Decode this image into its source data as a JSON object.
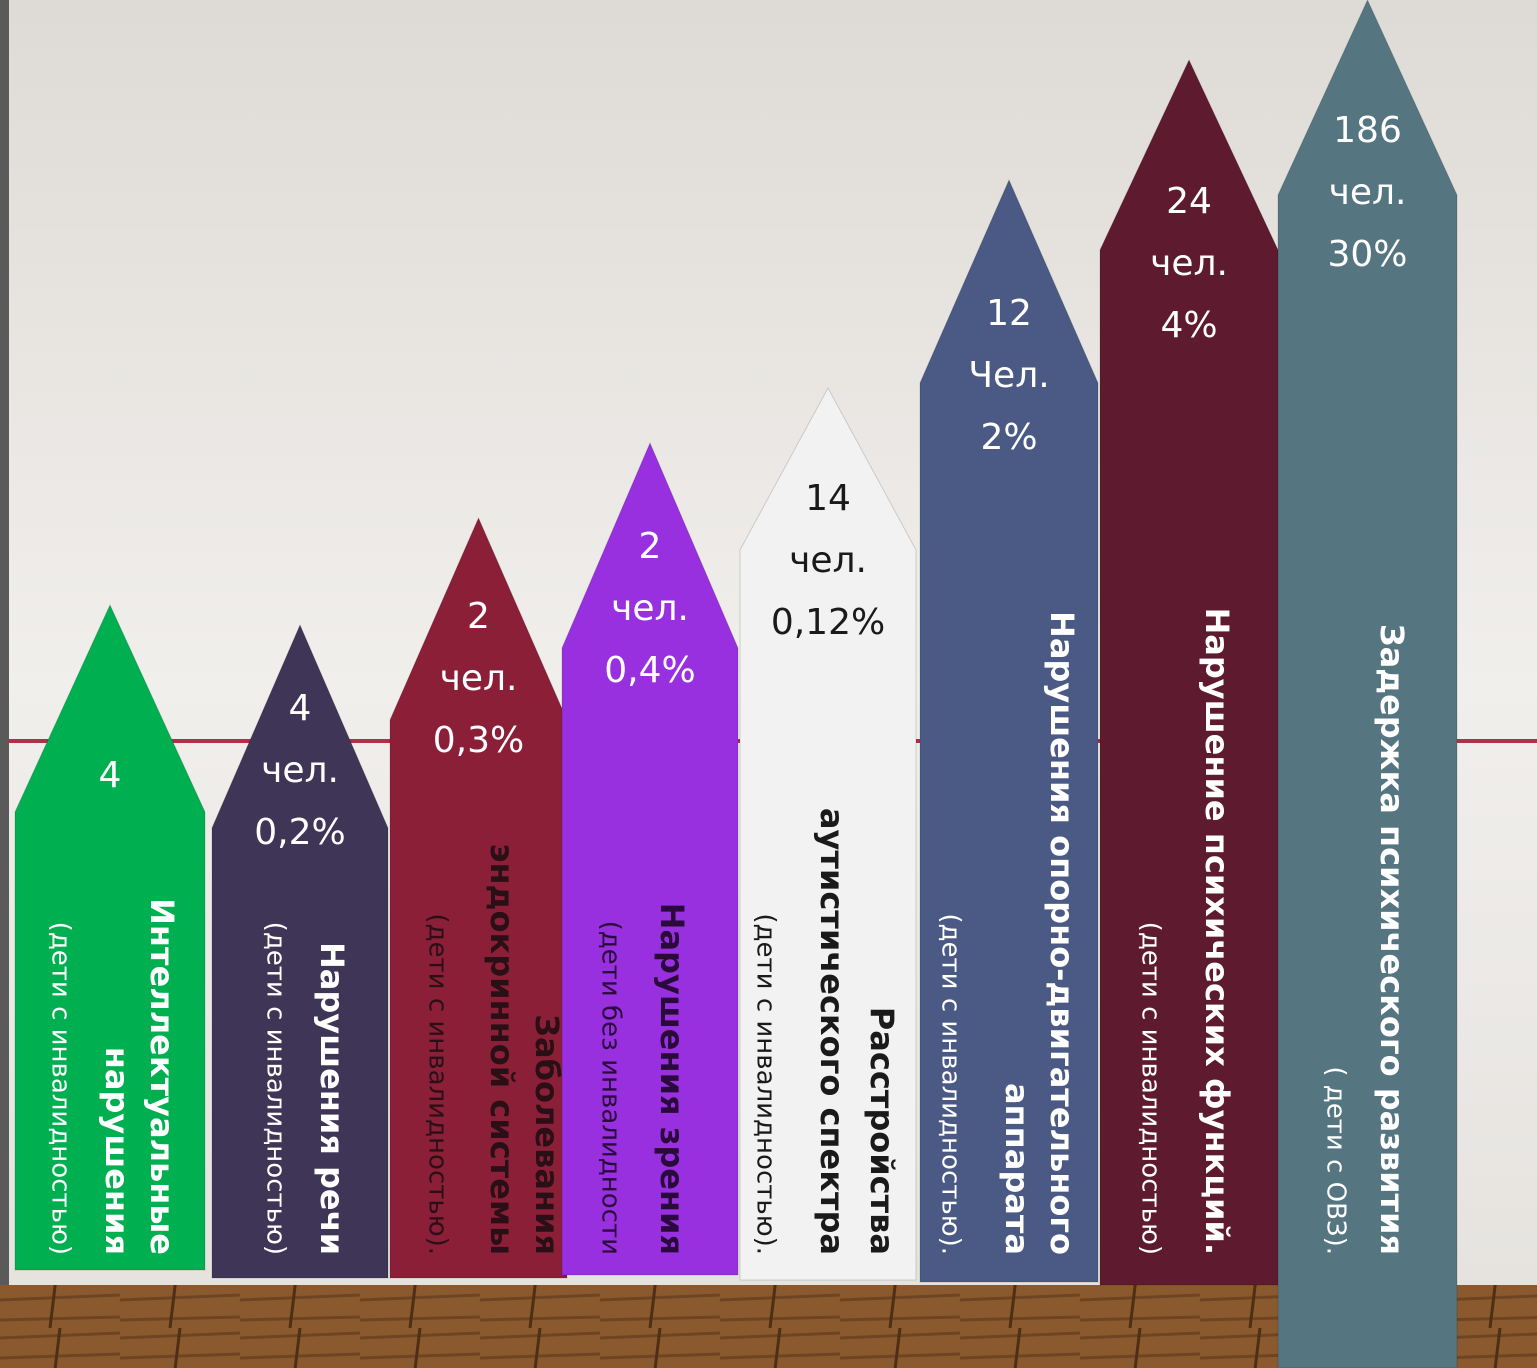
{
  "items": [
    {
      "count": "4",
      "title_lines": [
        "Интеллектуальные",
        "нарушения"
      ],
      "subtitle": "(дети с инвалидностью)",
      "color": "#00b050",
      "text_color": "#ffffff"
    },
    {
      "count": "4",
      "unit": "чел.",
      "percent": "0,2%",
      "title_lines": [
        "Нарушения речи"
      ],
      "subtitle": "(дети с инвалидностью)",
      "color": "#3f3557",
      "text_color": "#ffffff"
    },
    {
      "count": "2",
      "unit": "чел.",
      "percent": "0,3%",
      "title_lines": [
        "Заболевания",
        "эндокринной системы"
      ],
      "subtitle": "(дети с инвалидностью).",
      "color": "#8b1f38",
      "text_color": "#2a1016"
    },
    {
      "count": "2",
      "unit": "чел.",
      "percent": "0,4%",
      "title_lines": [
        "Нарушения зрения"
      ],
      "subtitle": "(дети без инвалидности",
      "color": "#9830e0",
      "text_color": "#2a0a3a"
    },
    {
      "count": "14",
      "unit": "чел.",
      "percent": "0,12%",
      "title_lines": [
        "Расстройства",
        "аутистического спектра"
      ],
      "subtitle": "(дети с инвалидностью).",
      "color": "#f2f2f2",
      "text_color": "#1a1a1a"
    },
    {
      "count": "12",
      "unit": "Чел.",
      "percent": "2%",
      "title_lines": [
        "Нарушения опорно-двигательного",
        "аппарата"
      ],
      "subtitle": "(дети с инвалидностью).",
      "color": "#4a5a85",
      "text_color": "#ffffff"
    },
    {
      "count": "24",
      "unit": "чел.",
      "percent": "4%",
      "title_lines": [
        "Нарушение психических функций."
      ],
      "subtitle": "(дети с инвалидностью)",
      "color": "#5e1a2e",
      "text_color": "#ffffff"
    },
    {
      "count": "186",
      "unit": "чел.",
      "percent": "30%",
      "title_lines": [
        "Задержка психического развития"
      ],
      "subtitle": "( дети с ОВЗ).",
      "color": "#557580",
      "text_color": "#ffffff"
    }
  ]
}
